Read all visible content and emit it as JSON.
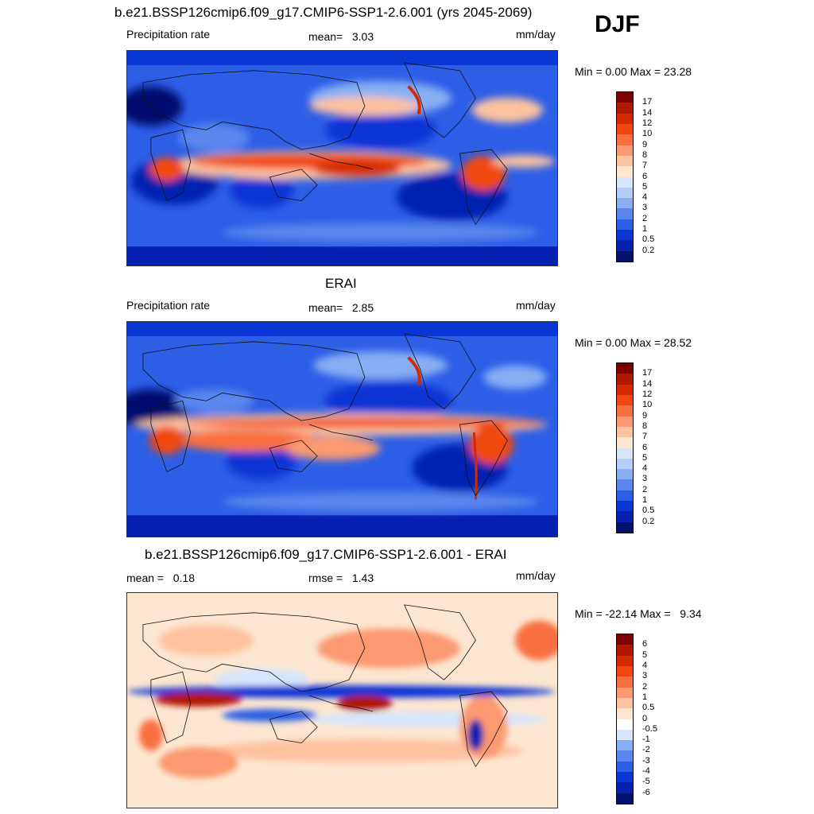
{
  "season": "DJF",
  "panels": [
    {
      "title": "b.e21.BSSP126cmip6.f09_g17.CMIP6-SSP1-2.6.001 (yrs 2045-2069)",
      "left_label": "Precipitation rate",
      "stat_label": "mean=",
      "stat_value": "3.03",
      "units": "mm/day",
      "minmax": "Min =   0.00 Max =  23.28",
      "colorbar": {
        "labels": [
          "17",
          "14",
          "12",
          "10",
          "9",
          "8",
          "7",
          "6",
          "5",
          "4",
          "3",
          "2",
          "1",
          "0.5",
          "0.2"
        ],
        "colors": [
          "#7f0000",
          "#b01800",
          "#d32a00",
          "#f04810",
          "#f87040",
          "#fb9a70",
          "#fdc2a0",
          "#fde6d0",
          "#d8e6fb",
          "#b4cef8",
          "#88aef4",
          "#5a86ee",
          "#2c5ee6",
          "#0b36d6",
          "#0620b0",
          "#02106e"
        ]
      }
    },
    {
      "title": "ERAI",
      "left_label": "Precipitation rate",
      "stat_label": "mean=",
      "stat_value": "2.85",
      "units": "mm/day",
      "minmax": "Min =   0.00 Max =  28.52",
      "colorbar": {
        "labels": [
          "17",
          "14",
          "12",
          "10",
          "9",
          "8",
          "7",
          "6",
          "5",
          "4",
          "3",
          "2",
          "1",
          "0.5",
          "0.2"
        ],
        "colors": [
          "#7f0000",
          "#b01800",
          "#d32a00",
          "#f04810",
          "#f87040",
          "#fb9a70",
          "#fdc2a0",
          "#fde6d0",
          "#d8e6fb",
          "#b4cef8",
          "#88aef4",
          "#5a86ee",
          "#2c5ee6",
          "#0b36d6",
          "#0620b0",
          "#02106e"
        ]
      }
    },
    {
      "title": "b.e21.BSSP126cmip6.f09_g17.CMIP6-SSP1-2.6.001 - ERAI",
      "left_label": "mean =   0.18",
      "stat_label": "rmse =",
      "stat_value": "1.43",
      "units": "mm/day",
      "minmax": "Min = -22.14 Max =   9.34",
      "colorbar": {
        "labels": [
          "6",
          "5",
          "4",
          "3",
          "2",
          "1",
          "0.5",
          "0",
          "-0.5",
          "-1",
          "-2",
          "-3",
          "-4",
          "-5",
          "-6"
        ],
        "colors": [
          "#7f0000",
          "#b01800",
          "#d32a00",
          "#f04810",
          "#f87040",
          "#fb9a70",
          "#fdc2a0",
          "#fde6d0",
          "#ffffff",
          "#d8e6fb",
          "#88aef4",
          "#5a86ee",
          "#2c5ee6",
          "#0b36d6",
          "#0620b0",
          "#02106e"
        ]
      }
    }
  ]
}
